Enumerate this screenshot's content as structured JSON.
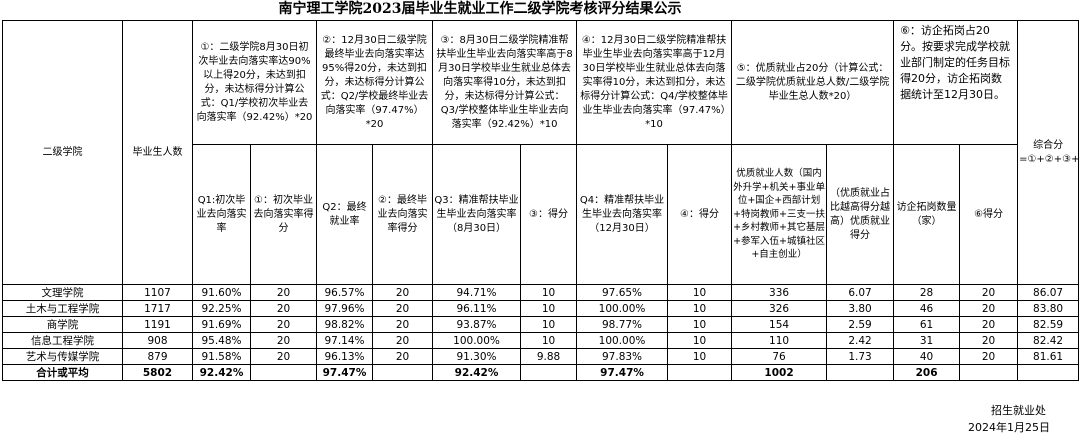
{
  "title": "南宁理工学院2023届毕业生就业工作二级学院考核评分结果公示",
  "headers": {
    "college": "二级学院",
    "grads": "毕业生人数",
    "total": "综合分=①+②+③+④+⑤+⑥",
    "rule1": "①：二级学院8月30日初次毕业去向落实率达90%以上得20分，未达到扣分，未达标得分计算公式：Q1/学校初次毕业去向落实率（92.42%）*20",
    "rule2": "②：12月30日二级学院最终毕业去向落实率达95%得20分，未达到扣分，未达标得分计算公式：Q2/学校最终毕业去向落实率（97.47%）*20",
    "rule3": "③：8月30日二级学院精准帮扶毕业生毕业去向落实率高于8月30日学校毕业生就业总体去向落实率得10分，未达到扣分，未达标得分计算公式：Q3/学校整体毕业生毕业去向落实率（92.42%）*10",
    "rule4": "④：12月30日二级学院精准帮扶毕业生毕业去向落实率高于12月30日学校毕业生就业总体去向落实率得10分，未达到扣分，未达标得分计算公式：Q4/学校整体毕业生毕业去向落实率（97.47%）*10",
    "rule5": "⑤：优质就业占20分（计算公式：二级学院优质就业总人数/二级学院毕业生总人数*20）",
    "rule6": "⑥：访企拓岗占20分。按要求完成学校就业部门制定的任务目标得20分，访企拓岗数据统计至12月30日。",
    "q1": "Q1:初次毕业去向落实率",
    "s1": "①：初次毕业去向落实率得分",
    "q2": "Q2：最终就业率",
    "s2": "②：最终毕业去向落实率得分",
    "q3": "Q3：精准帮扶毕业生毕业去向落实率（8月30日）",
    "s3": "③：得分",
    "q4": "Q4：精准帮扶毕业生毕业去向落实率（12月30日）",
    "s4": "④：得分",
    "q5": "优质就业人数（国内外升学+机关+事业单位+国企+西部计划+特岗教师+三支一扶+乡村教师+其它基层+参军入伍+城镇社区+自主创业）",
    "r5": "（优质就业占比越高得分越高）优质就业得分",
    "q6": "访企拓岗数量（家）",
    "s6": "⑥得分"
  },
  "rows": [
    {
      "name": "文理学院",
      "grads": "1107",
      "q1": "91.60%",
      "s1": "20",
      "q2": "96.57%",
      "s2": "20",
      "q3": "94.71%",
      "s3": "10",
      "q4": "97.65%",
      "s4": "10",
      "q5": "336",
      "s5": "6.07",
      "q6": "28",
      "s6": "20",
      "total": "86.07"
    },
    {
      "name": "土木与工程学院",
      "grads": "1717",
      "q1": "92.25%",
      "s1": "20",
      "q2": "97.96%",
      "s2": "20",
      "q3": "96.11%",
      "s3": "10",
      "q4": "100.00%",
      "s4": "10",
      "q5": "326",
      "s5": "3.80",
      "q6": "46",
      "s6": "20",
      "total": "83.80"
    },
    {
      "name": "商学院",
      "grads": "1191",
      "q1": "91.69%",
      "s1": "20",
      "q2": "98.82%",
      "s2": "20",
      "q3": "93.87%",
      "s3": "10",
      "q4": "98.77%",
      "s4": "10",
      "q5": "154",
      "s5": "2.59",
      "q6": "61",
      "s6": "20",
      "total": "82.59"
    },
    {
      "name": "信息工程学院",
      "grads": "908",
      "q1": "95.48%",
      "s1": "20",
      "q2": "97.14%",
      "s2": "20",
      "q3": "100.00%",
      "s3": "10",
      "q4": "100.00%",
      "s4": "10",
      "q5": "110",
      "s5": "2.42",
      "q6": "31",
      "s6": "20",
      "total": "82.42"
    },
    {
      "name": "艺术与传媒学院",
      "grads": "879",
      "q1": "91.58%",
      "s1": "20",
      "q2": "96.13%",
      "s2": "20",
      "q3": "91.30%",
      "s3": "9.88",
      "q4": "97.83%",
      "s4": "10",
      "q5": "76",
      "s5": "1.73",
      "q6": "40",
      "s6": "20",
      "total": "81.61"
    }
  ],
  "totals": {
    "label": "合计或平均",
    "grads": "5802",
    "q1": "92.42%",
    "q2": "97.47%",
    "q3": "92.42%",
    "q4": "97.47%",
    "q5": "1002",
    "q6": "206"
  },
  "footer": {
    "unit": "招生就业处",
    "date": "2024年1月25日"
  }
}
